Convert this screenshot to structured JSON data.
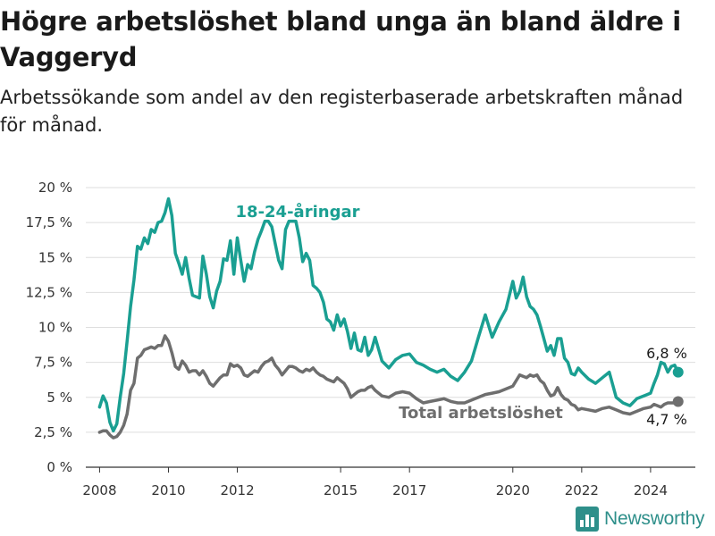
{
  "title": "Högre arbetslöshet bland unga än bland äldre i Vaggeryd",
  "subtitle": "Arbetssökande som andel av den registerbaserade arbetskraften månad för månad.",
  "brand": "Newsworthy",
  "colors": {
    "youth": "#1a9f92",
    "total": "#6e6e6e"
  },
  "chart_data": {
    "type": "line",
    "title": "Högre arbetslöshet bland unga än bland äldre i Vaggeryd",
    "xlabel": "",
    "ylabel": "",
    "ylim": [
      0,
      20
    ],
    "xlim": [
      2007.6,
      2025.3
    ],
    "grid": true,
    "x_ticks": [
      {
        "value": 2008,
        "label": "2008"
      },
      {
        "value": 2010,
        "label": "2010"
      },
      {
        "value": 2012,
        "label": "2012"
      },
      {
        "value": 2015,
        "label": "2015"
      },
      {
        "value": 2017,
        "label": "2017"
      },
      {
        "value": 2020,
        "label": "2020"
      },
      {
        "value": 2022,
        "label": "2022"
      },
      {
        "value": 2024,
        "label": "2024"
      }
    ],
    "y_ticks": [
      {
        "value": 0,
        "label": "0 %"
      },
      {
        "value": 2.5,
        "label": "2,5 %"
      },
      {
        "value": 5,
        "label": "5 %"
      },
      {
        "value": 7.5,
        "label": "7,5 %"
      },
      {
        "value": 10,
        "label": "10 %"
      },
      {
        "value": 12.5,
        "label": "12,5 %"
      },
      {
        "value": 15,
        "label": "15 %"
      },
      {
        "value": 17.5,
        "label": "17,5 %"
      },
      {
        "value": 20,
        "label": "20 %"
      }
    ],
    "series": [
      {
        "name": "18-24-åringar",
        "end_label": "6,8 %",
        "x": [
          2008.0,
          2008.1,
          2008.2,
          2008.3,
          2008.4,
          2008.5,
          2008.6,
          2008.7,
          2008.8,
          2008.9,
          2009.0,
          2009.1,
          2009.2,
          2009.3,
          2009.4,
          2009.5,
          2009.6,
          2009.7,
          2009.8,
          2009.9,
          2010.0,
          2010.1,
          2010.2,
          2010.3,
          2010.4,
          2010.5,
          2010.6,
          2010.7,
          2010.8,
          2010.9,
          2011.0,
          2011.1,
          2011.2,
          2011.3,
          2011.4,
          2011.5,
          2011.6,
          2011.7,
          2011.8,
          2011.9,
          2012.0,
          2012.1,
          2012.2,
          2012.3,
          2012.4,
          2012.5,
          2012.6,
          2012.7,
          2012.8,
          2012.9,
          2013.0,
          2013.1,
          2013.2,
          2013.3,
          2013.4,
          2013.5,
          2013.6,
          2013.7,
          2013.8,
          2013.9,
          2014.0,
          2014.1,
          2014.2,
          2014.3,
          2014.4,
          2014.5,
          2014.6,
          2014.7,
          2014.8,
          2014.9,
          2015.0,
          2015.1,
          2015.2,
          2015.3,
          2015.4,
          2015.5,
          2015.6,
          2015.7,
          2015.8,
          2015.9,
          2016.0,
          2016.2,
          2016.4,
          2016.6,
          2016.8,
          2017.0,
          2017.2,
          2017.4,
          2017.6,
          2017.8,
          2018.0,
          2018.2,
          2018.4,
          2018.6,
          2018.8,
          2019.0,
          2019.2,
          2019.4,
          2019.6,
          2019.8,
          2020.0,
          2020.1,
          2020.2,
          2020.3,
          2020.4,
          2020.5,
          2020.6,
          2020.7,
          2020.8,
          2020.9,
          2021.0,
          2021.1,
          2021.2,
          2021.3,
          2021.4,
          2021.5,
          2021.6,
          2021.7,
          2021.8,
          2021.9,
          2022.0,
          2022.2,
          2022.4,
          2022.6,
          2022.8,
          2023.0,
          2023.2,
          2023.4,
          2023.6,
          2023.8,
          2024.0,
          2024.1,
          2024.2,
          2024.3,
          2024.4,
          2024.5,
          2024.6,
          2024.7,
          2024.8
        ],
        "y": [
          4.3,
          5.1,
          4.6,
          3.2,
          2.6,
          3.1,
          5.0,
          6.7,
          9.0,
          11.5,
          13.4,
          15.8,
          15.6,
          16.4,
          16.0,
          17.0,
          16.8,
          17.5,
          17.6,
          18.2,
          19.2,
          18.0,
          15.3,
          14.6,
          13.8,
          15.0,
          13.5,
          12.3,
          12.2,
          12.1,
          15.1,
          13.8,
          12.2,
          11.4,
          12.6,
          13.3,
          14.9,
          14.8,
          16.2,
          13.8,
          16.4,
          14.8,
          13.3,
          14.5,
          14.2,
          15.4,
          16.3,
          16.9,
          17.6,
          17.6,
          17.2,
          16.0,
          14.8,
          14.2,
          17.0,
          17.6,
          17.6,
          17.6,
          16.4,
          14.7,
          15.3,
          14.8,
          13.0,
          12.8,
          12.5,
          11.8,
          10.6,
          10.4,
          9.8,
          10.9,
          10.1,
          10.6,
          9.7,
          8.5,
          9.6,
          8.4,
          8.3,
          9.3,
          8.0,
          8.4,
          9.3,
          7.6,
          7.1,
          7.7,
          8.0,
          8.1,
          7.5,
          7.3,
          7.0,
          6.8,
          7.0,
          6.5,
          6.2,
          6.8,
          7.6,
          9.3,
          10.9,
          9.3,
          10.4,
          11.3,
          13.3,
          12.1,
          12.6,
          13.6,
          12.2,
          11.5,
          11.3,
          10.9,
          10.1,
          9.2,
          8.3,
          8.7,
          8.0,
          9.2,
          9.2,
          7.8,
          7.5,
          6.7,
          6.6,
          7.1,
          6.8,
          6.3,
          6.0,
          6.4,
          6.8,
          5.0,
          4.6,
          4.4,
          4.9,
          5.1,
          5.3,
          6.0,
          6.6,
          7.5,
          7.4,
          6.8,
          7.2,
          7.3,
          6.8
        ]
      },
      {
        "name": "Total arbetslöshet",
        "end_label": "4,7 %",
        "x": [
          2008.0,
          2008.1,
          2008.2,
          2008.3,
          2008.4,
          2008.5,
          2008.6,
          2008.7,
          2008.8,
          2008.9,
          2009.0,
          2009.1,
          2009.2,
          2009.3,
          2009.4,
          2009.5,
          2009.6,
          2009.7,
          2009.8,
          2009.9,
          2010.0,
          2010.1,
          2010.2,
          2010.3,
          2010.4,
          2010.5,
          2010.6,
          2010.7,
          2010.8,
          2010.9,
          2011.0,
          2011.1,
          2011.2,
          2011.3,
          2011.4,
          2011.5,
          2011.6,
          2011.7,
          2011.8,
          2011.9,
          2012.0,
          2012.1,
          2012.2,
          2012.3,
          2012.4,
          2012.5,
          2012.6,
          2012.7,
          2012.8,
          2012.9,
          2013.0,
          2013.1,
          2013.2,
          2013.3,
          2013.4,
          2013.5,
          2013.6,
          2013.7,
          2013.8,
          2013.9,
          2014.0,
          2014.1,
          2014.2,
          2014.3,
          2014.4,
          2014.5,
          2014.6,
          2014.7,
          2014.8,
          2014.9,
          2015.0,
          2015.1,
          2015.2,
          2015.3,
          2015.4,
          2015.5,
          2015.6,
          2015.7,
          2015.8,
          2015.9,
          2016.0,
          2016.2,
          2016.4,
          2016.6,
          2016.8,
          2017.0,
          2017.2,
          2017.4,
          2017.6,
          2017.8,
          2018.0,
          2018.2,
          2018.4,
          2018.6,
          2018.8,
          2019.0,
          2019.2,
          2019.4,
          2019.6,
          2019.8,
          2020.0,
          2020.1,
          2020.2,
          2020.3,
          2020.4,
          2020.5,
          2020.6,
          2020.7,
          2020.8,
          2020.9,
          2021.0,
          2021.1,
          2021.2,
          2021.3,
          2021.4,
          2021.5,
          2021.6,
          2021.7,
          2021.8,
          2021.9,
          2022.0,
          2022.2,
          2022.4,
          2022.6,
          2022.8,
          2023.0,
          2023.2,
          2023.4,
          2023.6,
          2023.8,
          2024.0,
          2024.1,
          2024.2,
          2024.3,
          2024.4,
          2024.5,
          2024.6,
          2024.7,
          2024.8
        ],
        "y": [
          2.5,
          2.6,
          2.6,
          2.3,
          2.1,
          2.2,
          2.5,
          3.0,
          3.8,
          5.5,
          6.0,
          7.8,
          8.0,
          8.4,
          8.5,
          8.6,
          8.5,
          8.7,
          8.7,
          9.4,
          9.0,
          8.2,
          7.2,
          7.0,
          7.6,
          7.3,
          6.8,
          6.9,
          6.9,
          6.6,
          6.9,
          6.5,
          6.0,
          5.8,
          6.1,
          6.4,
          6.6,
          6.6,
          7.4,
          7.2,
          7.3,
          7.1,
          6.6,
          6.5,
          6.7,
          6.9,
          6.8,
          7.2,
          7.5,
          7.6,
          7.8,
          7.3,
          7.0,
          6.6,
          6.9,
          7.2,
          7.2,
          7.1,
          6.9,
          6.8,
          7.0,
          6.9,
          7.1,
          6.8,
          6.6,
          6.5,
          6.3,
          6.2,
          6.1,
          6.4,
          6.2,
          6.0,
          5.6,
          5.0,
          5.2,
          5.4,
          5.5,
          5.5,
          5.7,
          5.8,
          5.5,
          5.1,
          5.0,
          5.3,
          5.4,
          5.3,
          4.9,
          4.6,
          4.7,
          4.8,
          4.9,
          4.7,
          4.6,
          4.6,
          4.8,
          5.0,
          5.2,
          5.3,
          5.4,
          5.6,
          5.8,
          6.2,
          6.6,
          6.5,
          6.4,
          6.6,
          6.5,
          6.6,
          6.2,
          6.0,
          5.5,
          5.1,
          5.2,
          5.7,
          5.2,
          4.9,
          4.8,
          4.5,
          4.4,
          4.1,
          4.2,
          4.1,
          4.0,
          4.2,
          4.3,
          4.1,
          3.9,
          3.8,
          4.0,
          4.2,
          4.3,
          4.5,
          4.4,
          4.3,
          4.5,
          4.6,
          4.6,
          4.6,
          4.7
        ]
      }
    ]
  }
}
